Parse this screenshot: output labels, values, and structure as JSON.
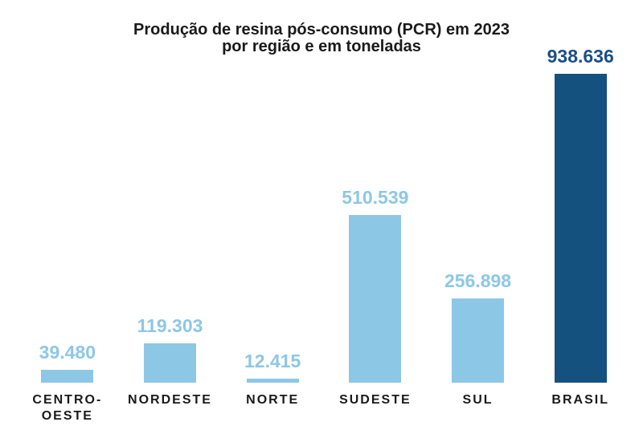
{
  "page": {
    "background": "#FFFFFF"
  },
  "title": {
    "line1": "Produção de resina pós-consumo (PCR) em 2023",
    "line2": "por região e em toneladas"
  },
  "chart_data": {
    "type": "bar",
    "title": "Produção de resina pós-consumo (PCR) em 2023 por região e em toneladas",
    "unit": "toneladas",
    "categories": [
      "CENTRO-OESTE",
      "NORDESTE",
      "NORTE",
      "SUDESTE",
      "SUL",
      "BRASIL"
    ],
    "values": [
      39480,
      119303,
      12415,
      510539,
      256898,
      938636
    ],
    "value_labels": [
      "39.480",
      "119.303",
      "12.415",
      "510.539",
      "256.898",
      "938.636"
    ],
    "xlabel": "",
    "ylabel": "",
    "ylim": [
      0,
      938636
    ],
    "grid": false,
    "legend": false,
    "axis_lines": false,
    "bar_colors": [
      "#8DC7E6",
      "#8DC7E6",
      "#8DC7E6",
      "#8DC7E6",
      "#8DC7E6",
      "#15517F"
    ],
    "value_label_colors": [
      "#8DC7E6",
      "#8DC7E6",
      "#8DC7E6",
      "#8DC7E6",
      "#8DC7E6",
      "#1A4F88"
    ]
  },
  "colors": {
    "light_blue": "#8DC7E6",
    "dark_blue": "#15517F",
    "dark_label_blue": "#1A4F88",
    "text": "#1A1A1A",
    "background": "#FFFFFF"
  }
}
